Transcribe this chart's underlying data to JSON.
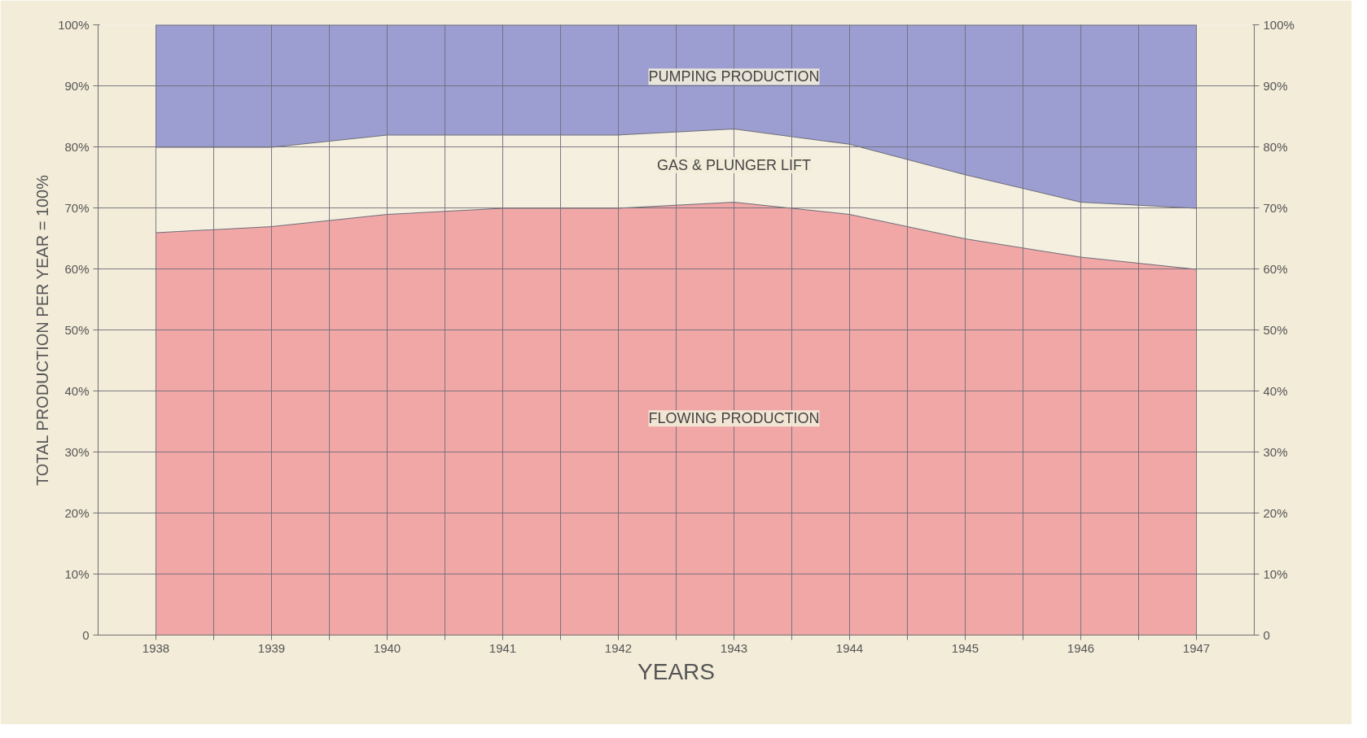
{
  "chart_data": {
    "type": "area",
    "stacked": true,
    "xlabel": "YEARS",
    "ylabel": "TOTAL PRODUCTION PER YEAR = 100%",
    "x": [
      1938,
      1939,
      1940,
      1941,
      1942,
      1943,
      1944,
      1945,
      1946,
      1947
    ],
    "series": [
      {
        "name": "FLOWING PRODUCTION",
        "color": "#f2a7a7",
        "values": [
          66,
          67,
          69,
          70,
          70,
          71,
          69,
          65,
          62,
          60
        ]
      },
      {
        "name": "GAS & PLUNGER LIFT",
        "color": "#f5efdf",
        "values": [
          14,
          13,
          13,
          12,
          12,
          12,
          11.5,
          10.5,
          9,
          10
        ]
      },
      {
        "name": "PUMPING PRODUCTION",
        "color": "#9c9ed2",
        "values": [
          20,
          20,
          18,
          18,
          18,
          17,
          19.5,
          24.5,
          29,
          30
        ]
      }
    ],
    "xlim": [
      1937.5,
      1947.5
    ],
    "xticks": [
      1938,
      {
        "value": 1938.5,
        "label": null
      },
      1939,
      {
        "value": 1939.5,
        "label": null
      },
      1940,
      {
        "value": 1940.5,
        "label": null
      },
      1941,
      {
        "value": 1941.5,
        "label": null
      },
      1942,
      {
        "value": 1942.5,
        "label": null
      },
      1943,
      {
        "value": 1943.5,
        "label": null
      },
      1944,
      {
        "value": 1944.5,
        "label": null
      },
      1945,
      {
        "value": 1945.5,
        "label": null
      },
      1946,
      {
        "value": 1946.5,
        "label": null
      },
      1947
    ],
    "ylim": [
      0,
      100
    ],
    "yticks": [
      {
        "value": 0,
        "label": "0"
      },
      {
        "value": 10,
        "label": "10%"
      },
      {
        "value": 20,
        "label": "20%"
      },
      {
        "value": 30,
        "label": "30%"
      },
      {
        "value": 40,
        "label": "40%"
      },
      {
        "value": 50,
        "label": "50%"
      },
      {
        "value": 60,
        "label": "60%"
      },
      {
        "value": 70,
        "label": "70%"
      },
      {
        "value": 80,
        "label": "80%"
      },
      {
        "value": 90,
        "label": "90%"
      },
      {
        "value": 100,
        "label": "100%"
      }
    ],
    "y2lim": [
      0,
      100
    ],
    "y2ticks": [
      {
        "value": 0,
        "label": "0"
      },
      {
        "value": 10,
        "label": "10%"
      },
      {
        "value": 20,
        "label": "20%"
      },
      {
        "value": 30,
        "label": "30%"
      },
      {
        "value": 40,
        "label": "40%"
      },
      {
        "value": 50,
        "label": "50%"
      },
      {
        "value": 60,
        "label": "60%"
      },
      {
        "value": 70,
        "label": "70%"
      },
      {
        "value": 80,
        "label": "80%"
      },
      {
        "value": 90,
        "label": "90%"
      },
      {
        "value": 100,
        "label": "100%"
      }
    ],
    "grid": true
  }
}
